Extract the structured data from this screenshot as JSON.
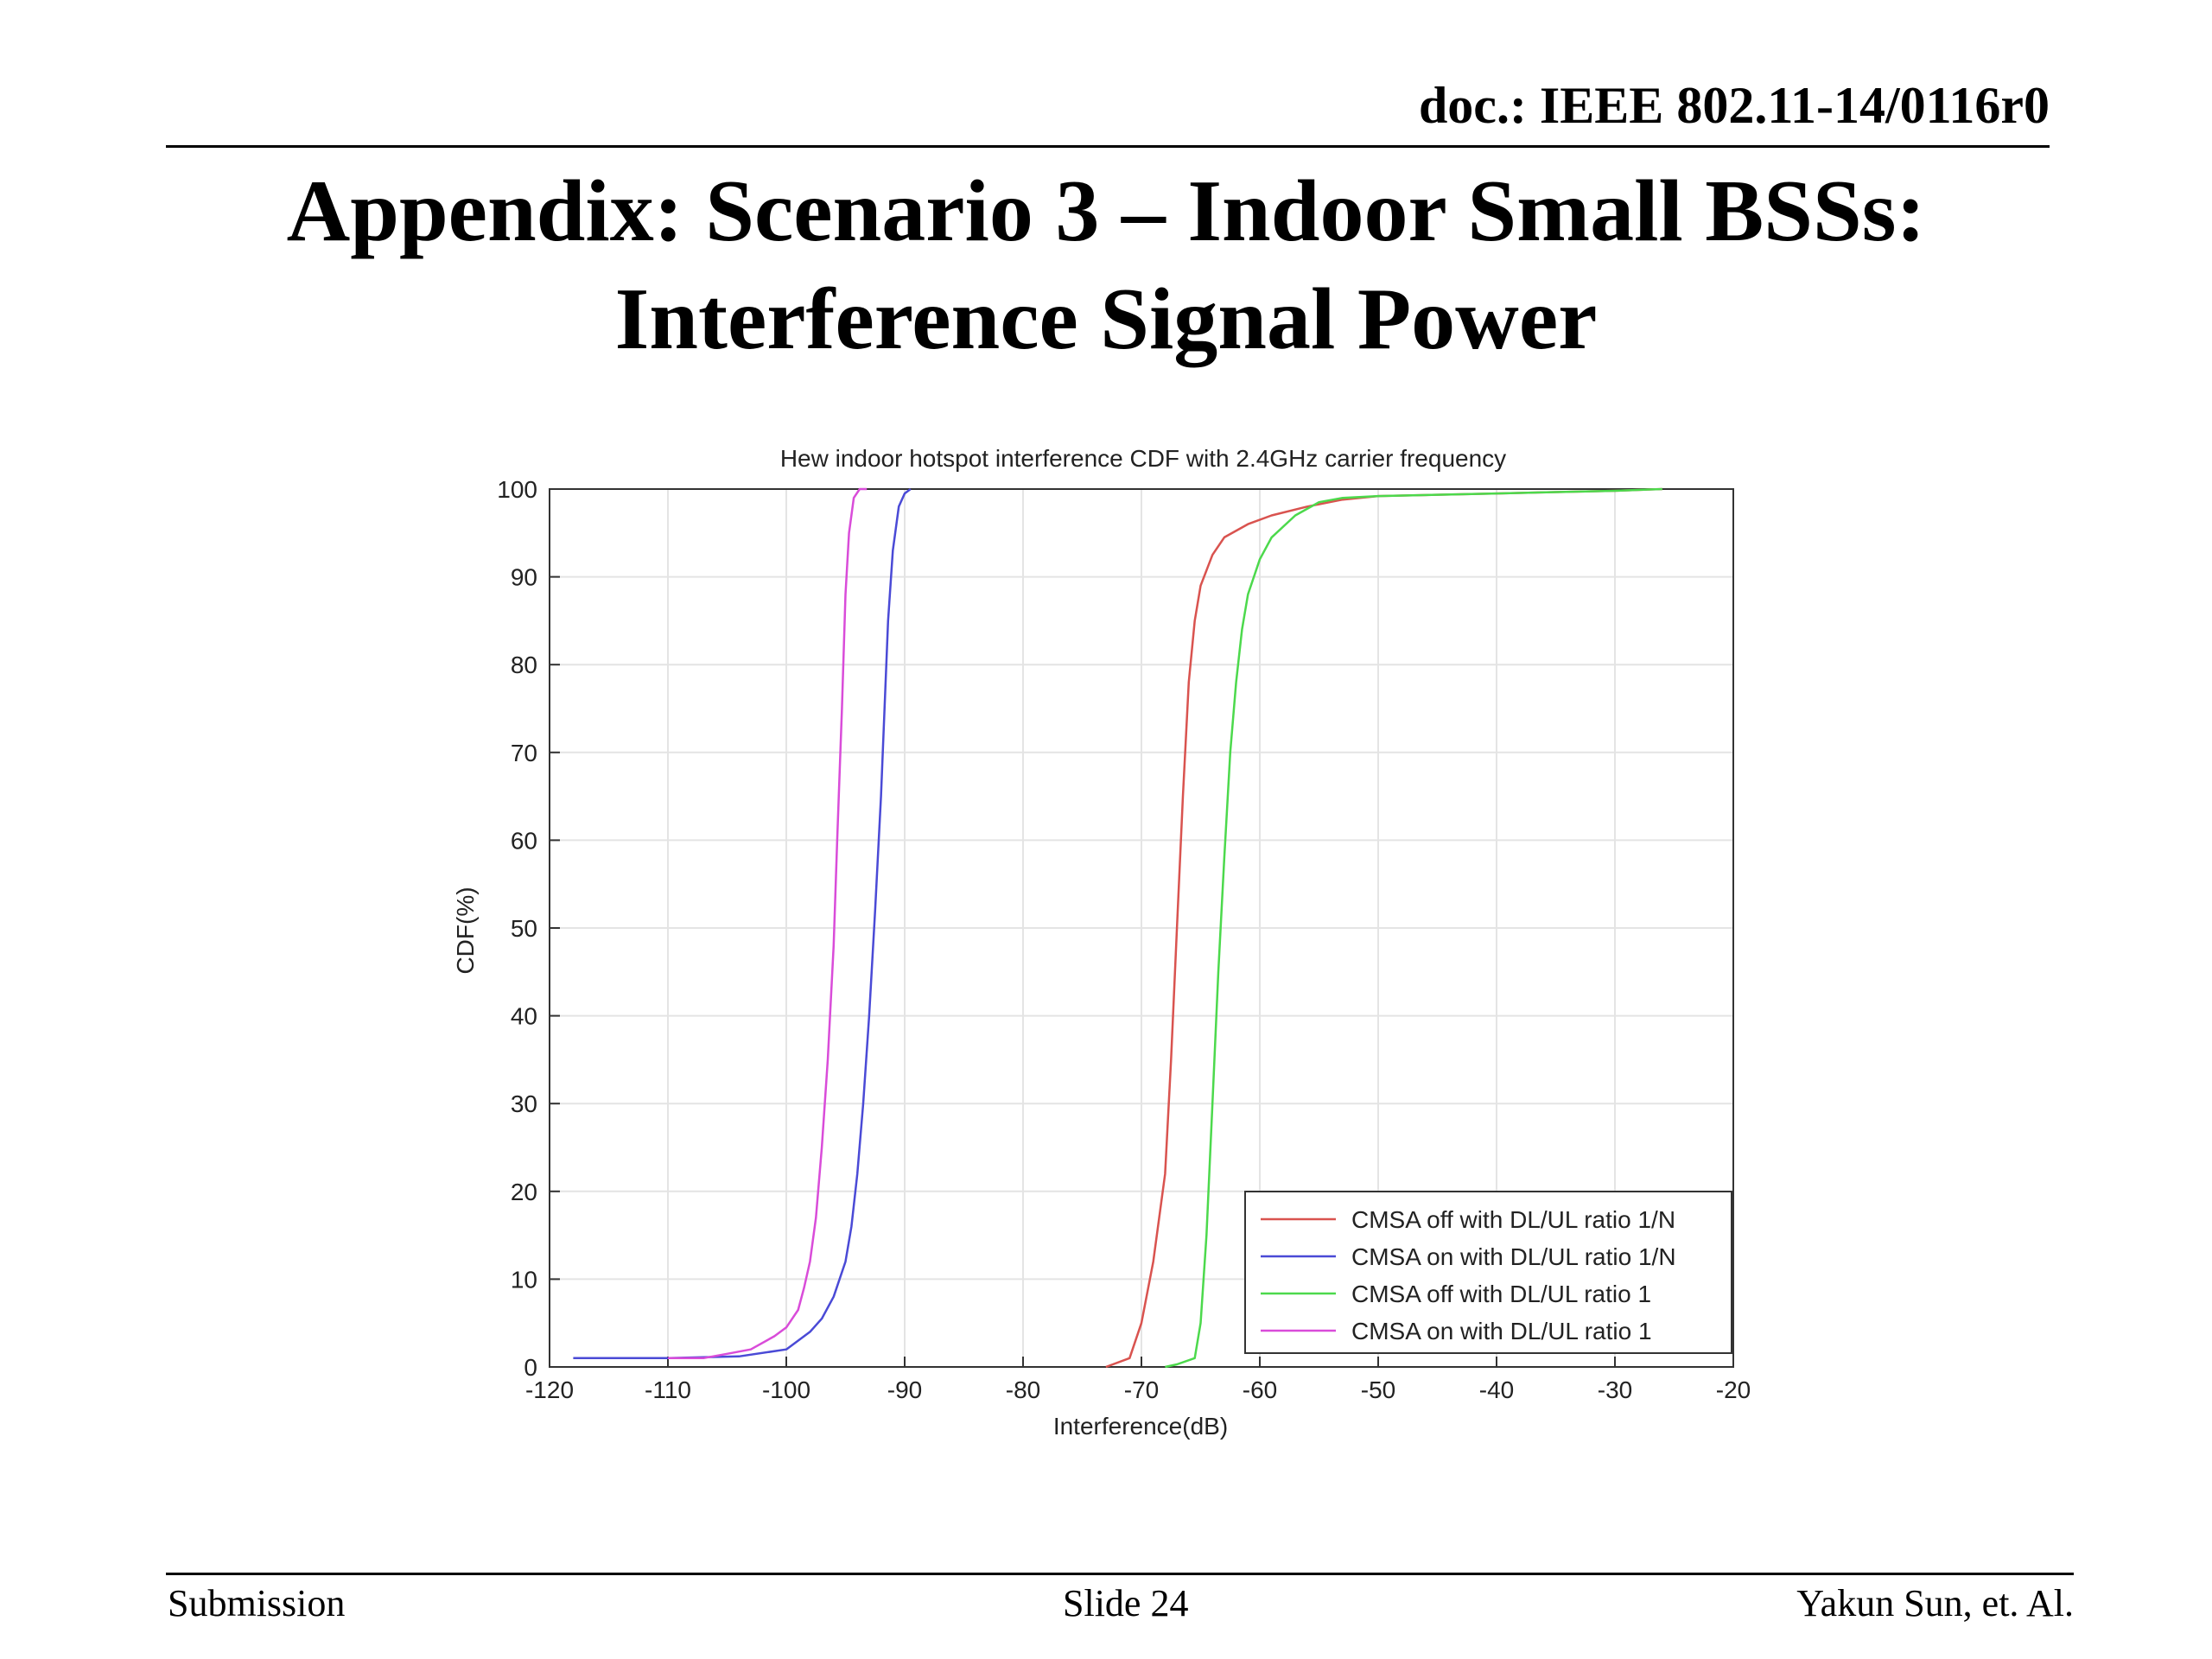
{
  "header": {
    "doc_id": "doc.: IEEE 802.11-14/0116r0"
  },
  "slide": {
    "title_line1": "Appendix: Scenario 3 – Indoor Small BSSs:",
    "title_line2": "Interference Signal Power"
  },
  "footer": {
    "left": "Submission",
    "center": "Slide 24",
    "right": "Yakun Sun, et. Al."
  },
  "chart_data": {
    "type": "line",
    "title": "Hew indoor hotspot interference CDF with 2.4GHz carrier frequency",
    "xlabel": "Interference(dB)",
    "ylabel": "CDF(%)",
    "xlim": [
      -120,
      -20
    ],
    "ylim": [
      0,
      100
    ],
    "xticks": [
      -120,
      -110,
      -100,
      -90,
      -80,
      -70,
      -60,
      -50,
      -40,
      -30,
      -20
    ],
    "yticks": [
      0,
      10,
      20,
      30,
      40,
      50,
      60,
      70,
      80,
      90,
      100
    ],
    "grid": true,
    "legend_position": "bottom-right",
    "series": [
      {
        "name": "CMSA off with DL/UL ratio 1/N",
        "color": "#d9534f",
        "points": [
          [
            -73,
            0
          ],
          [
            -71,
            1
          ],
          [
            -70,
            5
          ],
          [
            -69,
            12
          ],
          [
            -68,
            22
          ],
          [
            -67.5,
            35
          ],
          [
            -67,
            50
          ],
          [
            -66.5,
            65
          ],
          [
            -66,
            78
          ],
          [
            -65.5,
            85
          ],
          [
            -65,
            89
          ],
          [
            -64,
            92.5
          ],
          [
            -63,
            94.5
          ],
          [
            -61,
            96
          ],
          [
            -59,
            97
          ],
          [
            -56,
            98
          ],
          [
            -53,
            98.8
          ],
          [
            -50,
            99.2
          ],
          [
            -40,
            99.5
          ],
          [
            -30,
            99.8
          ],
          [
            -26,
            100
          ]
        ]
      },
      {
        "name": "CMSA on with DL/UL ratio 1/N",
        "color": "#4a4ad6",
        "points": [
          [
            -118,
            1
          ],
          [
            -110,
            1
          ],
          [
            -104,
            1.2
          ],
          [
            -100,
            2
          ],
          [
            -98,
            4
          ],
          [
            -97,
            5.5
          ],
          [
            -96,
            8
          ],
          [
            -95,
            12
          ],
          [
            -94.5,
            16
          ],
          [
            -94,
            22
          ],
          [
            -93.5,
            30
          ],
          [
            -93,
            40
          ],
          [
            -92.5,
            52
          ],
          [
            -92,
            65
          ],
          [
            -91.7,
            75
          ],
          [
            -91.4,
            85
          ],
          [
            -91,
            93
          ],
          [
            -90.5,
            98
          ],
          [
            -90,
            99.5
          ],
          [
            -89.5,
            100
          ]
        ]
      },
      {
        "name": "CMSA off with DL/UL ratio 1",
        "color": "#4cd94c",
        "points": [
          [
            -68,
            0
          ],
          [
            -67,
            0.3
          ],
          [
            -65.5,
            1
          ],
          [
            -65,
            5
          ],
          [
            -64.5,
            15
          ],
          [
            -64,
            30
          ],
          [
            -63.5,
            45
          ],
          [
            -63,
            58
          ],
          [
            -62.5,
            70
          ],
          [
            -62,
            78
          ],
          [
            -61.5,
            84
          ],
          [
            -61,
            88
          ],
          [
            -60,
            92
          ],
          [
            -59,
            94.5
          ],
          [
            -57,
            97
          ],
          [
            -55,
            98.5
          ],
          [
            -53,
            99
          ],
          [
            -50,
            99.2
          ],
          [
            -40,
            99.5
          ],
          [
            -30,
            99.8
          ],
          [
            -26,
            100
          ]
        ]
      },
      {
        "name": "CMSA on with DL/UL ratio 1",
        "color": "#d94cd9",
        "points": [
          [
            -110,
            1
          ],
          [
            -107,
            1
          ],
          [
            -105,
            1.5
          ],
          [
            -103,
            2
          ],
          [
            -101,
            3.5
          ],
          [
            -100,
            4.5
          ],
          [
            -99,
            6.5
          ],
          [
            -98.5,
            9
          ],
          [
            -98,
            12
          ],
          [
            -97.5,
            17
          ],
          [
            -97,
            25
          ],
          [
            -96.5,
            35
          ],
          [
            -96,
            48
          ],
          [
            -95.7,
            60
          ],
          [
            -95.3,
            75
          ],
          [
            -95,
            88
          ],
          [
            -94.7,
            95
          ],
          [
            -94.3,
            99
          ],
          [
            -93.8,
            100
          ],
          [
            -93.2,
            100
          ]
        ]
      }
    ]
  }
}
